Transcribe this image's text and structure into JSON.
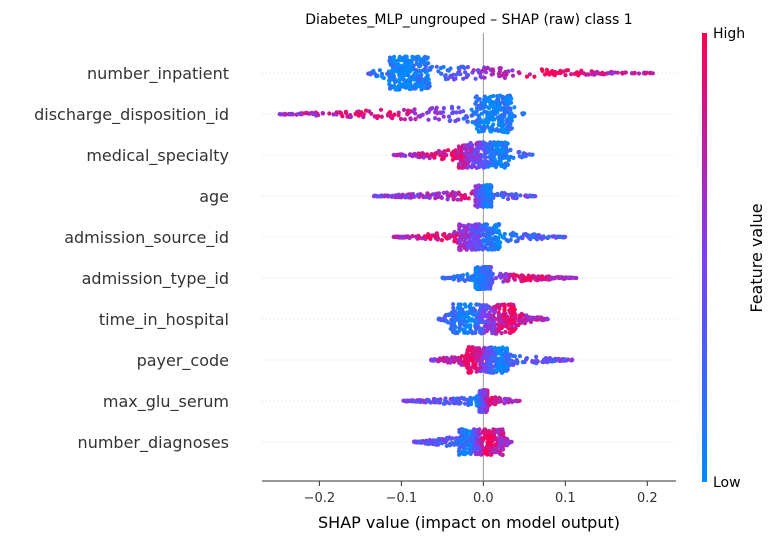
{
  "chart_data": {
    "type": "scatter",
    "subtype": "shap-beeswarm",
    "title": "Diabetes_MLP_ungrouped – SHAP (raw) class 1",
    "xlabel": "SHAP value (impact on model output)",
    "ylabel": "",
    "xlim": [
      -0.27,
      0.235
    ],
    "xticks": [
      -0.2,
      -0.1,
      0.0,
      0.1,
      0.2
    ],
    "xtick_labels": [
      "−0.2",
      "−0.1",
      "0.0",
      "0.1",
      "0.2"
    ],
    "grid": false,
    "colorbar": {
      "label": "Feature value",
      "high_label": "High",
      "low_label": "Low",
      "high_color": "#ff0052",
      "mid_color": "#7b3ff5",
      "low_color": "#008bfb"
    },
    "features": [
      {
        "name": "number_inpatient",
        "min": -0.145,
        "max": 0.21,
        "core": [
          -0.115,
          -0.065
        ],
        "low_center": -0.095,
        "high_center": 0.08,
        "peak": 0.45
      },
      {
        "name": "discharge_disposition_id",
        "min": -0.25,
        "max": 0.05,
        "core": [
          -0.01,
          0.035
        ],
        "low_center": 0.012,
        "high_center": -0.12,
        "peak": 0.5
      },
      {
        "name": "medical_specialty",
        "min": -0.11,
        "max": 0.06,
        "core": [
          -0.03,
          0.03
        ],
        "low_center": 0.02,
        "high_center": -0.04,
        "peak": 0.35
      },
      {
        "name": "age",
        "min": -0.135,
        "max": 0.065,
        "core": [
          -0.01,
          0.01
        ],
        "low_center": 0.005,
        "high_center": -0.02,
        "peak": 0.3
      },
      {
        "name": "admission_source_id",
        "min": -0.11,
        "max": 0.1,
        "core": [
          -0.03,
          0.02
        ],
        "low_center": 0.02,
        "high_center": -0.05,
        "peak": 0.35
      },
      {
        "name": "admission_type_id",
        "min": -0.05,
        "max": 0.115,
        "core": [
          -0.01,
          0.01
        ],
        "low_center": -0.01,
        "high_center": 0.05,
        "peak": 0.3
      },
      {
        "name": "time_in_hospital",
        "min": -0.055,
        "max": 0.08,
        "core": [
          -0.04,
          0.04
        ],
        "low_center": -0.02,
        "high_center": 0.03,
        "peak": 0.4
      },
      {
        "name": "payer_code",
        "min": -0.065,
        "max": 0.11,
        "core": [
          -0.02,
          0.03
        ],
        "low_center": 0.02,
        "high_center": -0.015,
        "peak": 0.35
      },
      {
        "name": "max_glu_serum",
        "min": -0.1,
        "max": 0.045,
        "core": [
          -0.005,
          0.005
        ],
        "low_center": -0.01,
        "high_center": 0.01,
        "peak": 0.3
      },
      {
        "name": "number_diagnoses",
        "min": -0.085,
        "max": 0.035,
        "core": [
          -0.03,
          0.025
        ],
        "low_center": -0.02,
        "high_center": 0.005,
        "peak": 0.35
      }
    ]
  }
}
